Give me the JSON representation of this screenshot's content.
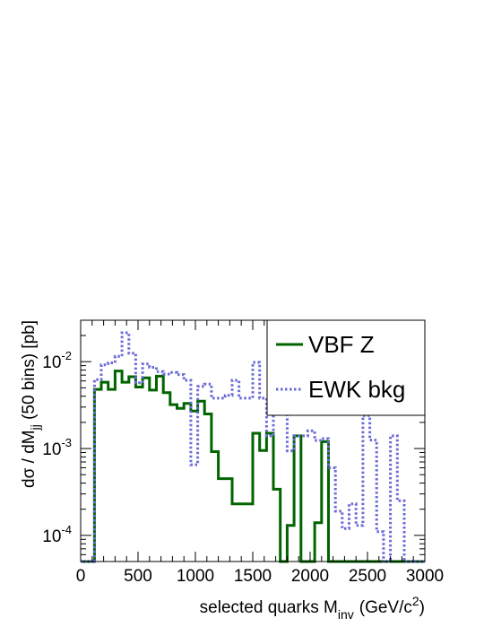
{
  "chart_data": {
    "type": "histogram",
    "xlabel_main": "selected quarks M",
    "xlabel_sub": "inv",
    "xlabel_unit_pre": "(GeV/c",
    "xlabel_unit_sup": "2",
    "xlabel_unit_post": ")",
    "ylabel_pre": "dσ / dM",
    "ylabel_sub": "jj",
    "ylabel_post": " (50 bins) [pb]",
    "xlim": [
      0,
      3000
    ],
    "ylim": [
      5e-05,
      0.03
    ],
    "log_y": true,
    "bin_width": 60,
    "x_ticks": [
      0,
      500,
      1000,
      1500,
      2000,
      2500,
      3000
    ],
    "x_tick_labels": [
      "0",
      "500",
      "1000",
      "1500",
      "2000",
      "2500",
      "3000"
    ],
    "y_ticks": [
      0.0001,
      0.001,
      0.01
    ],
    "y_tick_labels": [
      {
        "base": "10",
        "exp": "-4"
      },
      {
        "base": "10",
        "exp": "-3"
      },
      {
        "base": "10",
        "exp": "-2"
      }
    ],
    "legend_position": "top-right",
    "series": [
      {
        "name": "VBF Z",
        "color": "#006400",
        "style": "solid",
        "values": [
          5e-05,
          5e-05,
          0.0048,
          0.0058,
          0.0048,
          0.0078,
          0.0058,
          0.0067,
          0.0051,
          0.0065,
          0.0047,
          0.0068,
          0.0044,
          0.0032,
          0.0029,
          0.0033,
          0.0027,
          0.0035,
          0.0025,
          0.00092,
          0.00045,
          0.00045,
          0.00023,
          0.00023,
          0.00023,
          0.0015,
          0.00095,
          0.0015,
          0.00034,
          5e-05,
          0.00013,
          0.0014,
          5e-05,
          5e-05,
          0.00014,
          0.0012,
          5e-05,
          5e-05,
          5e-05,
          5e-05,
          5e-05,
          5e-05,
          5e-05,
          5e-05,
          5e-05,
          5e-05,
          5e-05,
          5e-05,
          5e-05,
          5e-05
        ]
      },
      {
        "name": "EWK bkg",
        "color": "#6a6ad8",
        "style": "dotted",
        "values": [
          5e-05,
          5e-05,
          0.0062,
          0.0092,
          0.0097,
          0.0115,
          0.0215,
          0.0125,
          0.0057,
          0.0094,
          0.0086,
          0.0077,
          0.0072,
          0.0075,
          0.0071,
          0.0061,
          0.00065,
          0.0052,
          0.0055,
          0.0038,
          0.0038,
          0.0041,
          0.0061,
          0.0038,
          0.0038,
          0.0098,
          0.0038,
          0.0014,
          0.0029,
          0.0058,
          0.00094,
          0.0014,
          0.0014,
          0.0016,
          0.00124,
          0.0013,
          0.0006,
          0.00019,
          0.00012,
          0.00023,
          0.00013,
          0.0024,
          0.00125,
          0.00011,
          5e-05,
          0.0014,
          0.00025,
          5e-05,
          5e-05,
          5e-05
        ]
      }
    ]
  }
}
